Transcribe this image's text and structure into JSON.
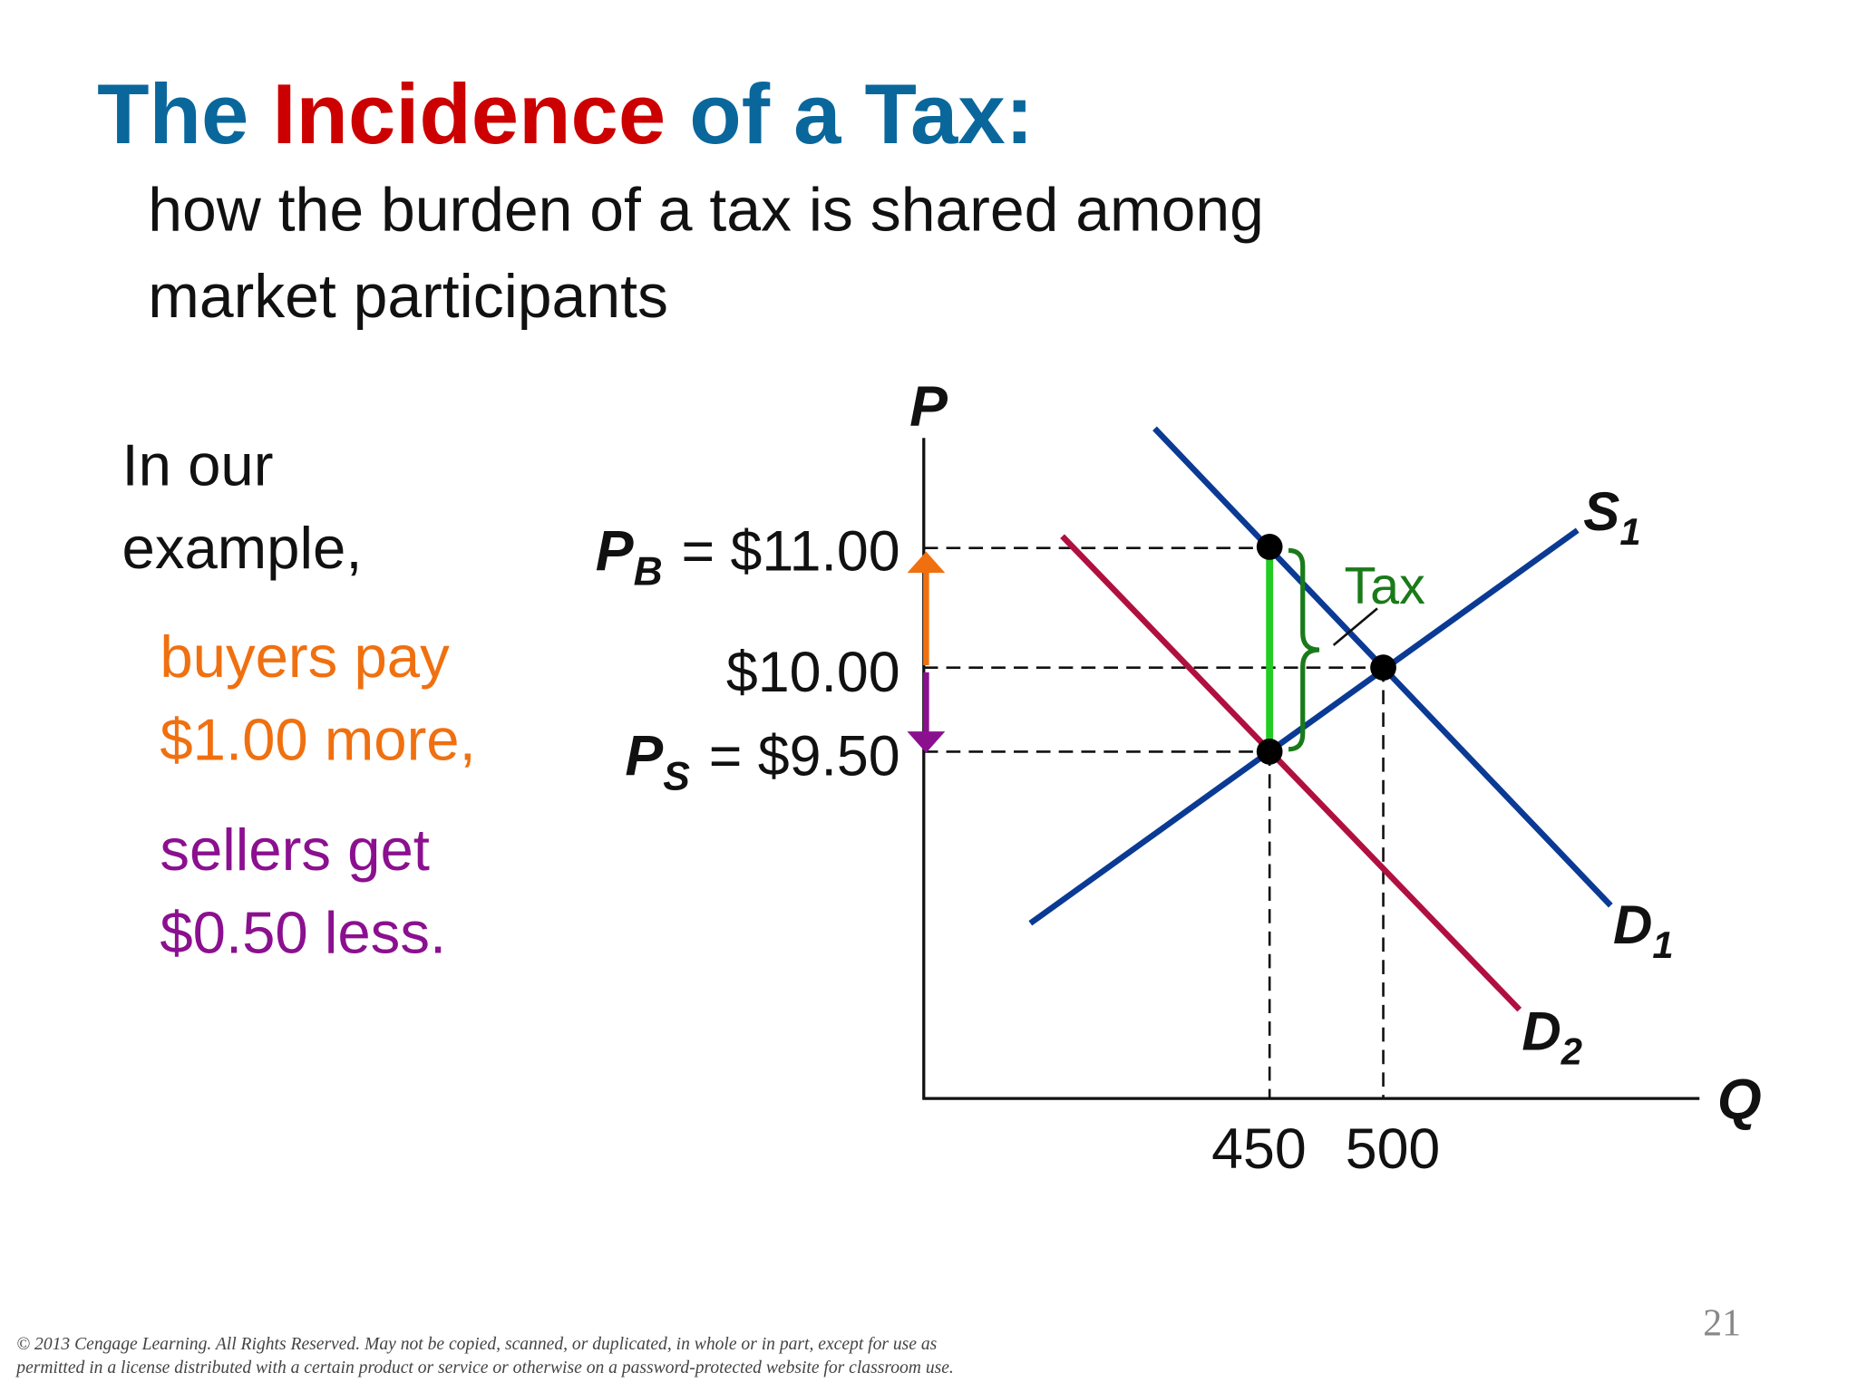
{
  "title": {
    "parts": [
      "The",
      "Incidence",
      "of a Tax:"
    ]
  },
  "subtitle": [
    "how the burden of a tax is shared among",
    "market participants"
  ],
  "body": {
    "intro": [
      "In our",
      "example,"
    ],
    "buyers": [
      "buyers pay",
      "$1.00 more,"
    ],
    "sellers": [
      "sellers get",
      "$0.50 less."
    ]
  },
  "diagram": {
    "y_axis_label": "P",
    "x_axis_label": "Q",
    "price_buyers": {
      "symbol": "P",
      "subscript": "B",
      "text": "= $11.00"
    },
    "price_equilibrium": "$10.00",
    "price_sellers": {
      "symbol": "P",
      "subscript": "S",
      "text": "= $9.50"
    },
    "quantities": [
      "450",
      "500"
    ],
    "tax_label": "Tax",
    "curves": [
      {
        "symbol": "S",
        "subscript": "1"
      },
      {
        "symbol": "D",
        "subscript": "1"
      },
      {
        "symbol": "D",
        "subscript": "2"
      }
    ]
  },
  "footer": {
    "copyright": [
      "© 2013 Cengage Learning. All Rights Reserved. May not be copied, scanned, or duplicated, in whole or in part, except for use as",
      "permitted in a license distributed with a certain product or service or otherwise on a password-protected website for classroom use."
    ],
    "page_number": "21"
  }
}
